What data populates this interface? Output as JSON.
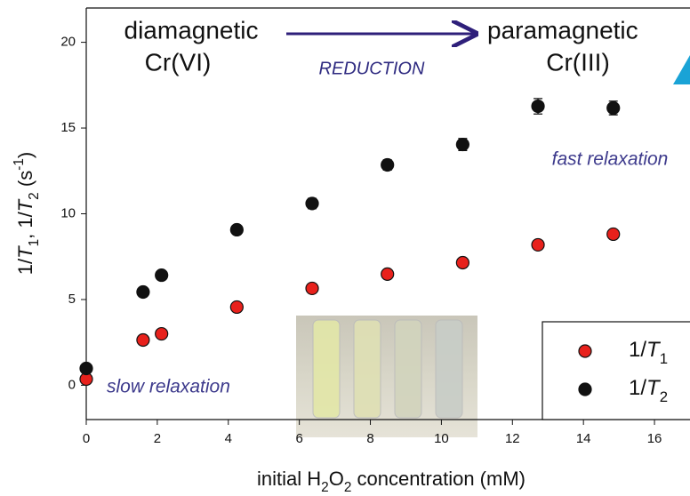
{
  "chart_data": {
    "type": "scatter",
    "annotations": [
      "diamagnetic",
      "Cr(VI)",
      "REDUCTION",
      "paramagnetic",
      "Cr(III)",
      "fast relaxation",
      "slow relaxation"
    ],
    "xlabel": "initial H2O2 concentration (mM)",
    "ylabel": "1/T1, 1/T2 (s-1)",
    "xlim": [
      0,
      17
    ],
    "xticks": [
      0,
      2,
      4,
      6,
      8,
      10,
      12,
      14,
      16
    ],
    "ylim": [
      -2,
      22
    ],
    "yticks": [
      0,
      5,
      10,
      15,
      20
    ],
    "legend": "lower right",
    "series": [
      {
        "name": "1/T1",
        "color": "#e8211c",
        "x": [
          0,
          1.6,
          2.12,
          4.24,
          6.36,
          8.48,
          10.6,
          12.72,
          14.84
        ],
        "values": [
          0.36,
          2.64,
          3.0,
          4.56,
          5.65,
          6.48,
          7.15,
          8.19,
          8.81
        ],
        "errors": [
          0.15,
          0.15,
          0.15,
          0.15,
          0.15,
          0.15,
          0.2,
          0.25,
          0.25
        ]
      },
      {
        "name": "1/T2",
        "color": "#111111",
        "x": [
          0,
          1.6,
          2.12,
          4.24,
          6.36,
          8.48,
          10.6,
          12.72,
          14.84
        ],
        "values": [
          0.98,
          5.44,
          6.42,
          9.07,
          10.6,
          12.85,
          14.04,
          16.27,
          16.17
        ],
        "errors": [
          0.15,
          0.15,
          0.2,
          0.25,
          0.3,
          0.3,
          0.35,
          0.45,
          0.4
        ]
      }
    ]
  }
}
